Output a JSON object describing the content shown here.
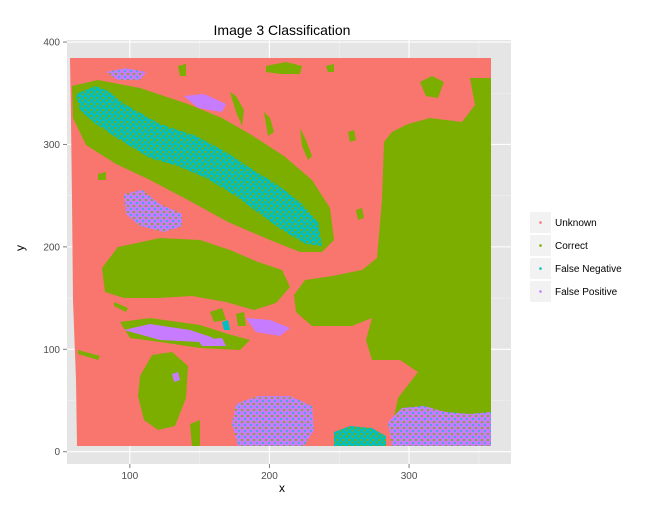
{
  "chart_data": {
    "type": "scatter",
    "title": "Image 3 Classification",
    "xlabel": "x",
    "ylabel": "y",
    "xlim": [
      55,
      373
    ],
    "ylim": [
      -12,
      402
    ],
    "x_ticks": [
      100,
      200,
      300
    ],
    "y_ticks": [
      0,
      100,
      200,
      300,
      400
    ],
    "grid": true,
    "legend_placement": "right",
    "series": [
      {
        "name": "Unknown",
        "color": "#F8766D"
      },
      {
        "name": "Correct",
        "color": "#7CAE00"
      },
      {
        "name": "False Negative",
        "color": "#00BFC4"
      },
      {
        "name": "False Positive",
        "color": "#C77CFF"
      }
    ]
  }
}
